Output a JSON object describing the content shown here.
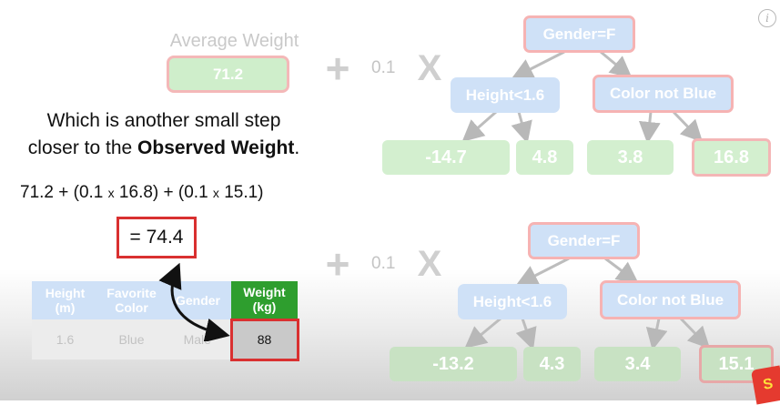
{
  "top_left": {
    "title": "Average Weight",
    "value": "71.2"
  },
  "operators": {
    "plus": "+",
    "learning_rate": "0.1",
    "times": "X"
  },
  "tree1": {
    "root": "Gender=F",
    "left_node": "Height<1.6",
    "right_node": "Color not Blue",
    "leaves": [
      "-14.7",
      "4.8",
      "3.8",
      "16.8"
    ]
  },
  "tree2": {
    "root": "Gender=F",
    "left_node": "Height<1.6",
    "right_node": "Color not Blue",
    "leaves": [
      "-13.2",
      "4.3",
      "3.4",
      "15.1"
    ]
  },
  "explanation": {
    "line1": "Which is another small step",
    "line2_prefix": "closer to the ",
    "line2_bold": "Observed Weight",
    "line2_suffix": "."
  },
  "equation": {
    "part1": "71.2 + (0.1 ",
    "x1": "x",
    "part2": " 16.8) + (0.1 ",
    "x2": "x",
    "part3": " 15.1)",
    "result": "= 74.4"
  },
  "table": {
    "headers": [
      "Height (m)",
      "Favorite Color",
      "Gender",
      "Weight (kg)"
    ],
    "header_lines": [
      [
        "Height",
        "(m)"
      ],
      [
        "Favorite",
        "Color"
      ],
      [
        "Gender"
      ],
      [
        "Weight",
        "(kg)"
      ]
    ],
    "row": [
      "1.6",
      "Blue",
      "Male",
      "88"
    ]
  },
  "info_icon": "i",
  "logo_text": "S",
  "colors": {
    "highlight_red": "#d93030",
    "weight_green": "#2e9e2e"
  }
}
